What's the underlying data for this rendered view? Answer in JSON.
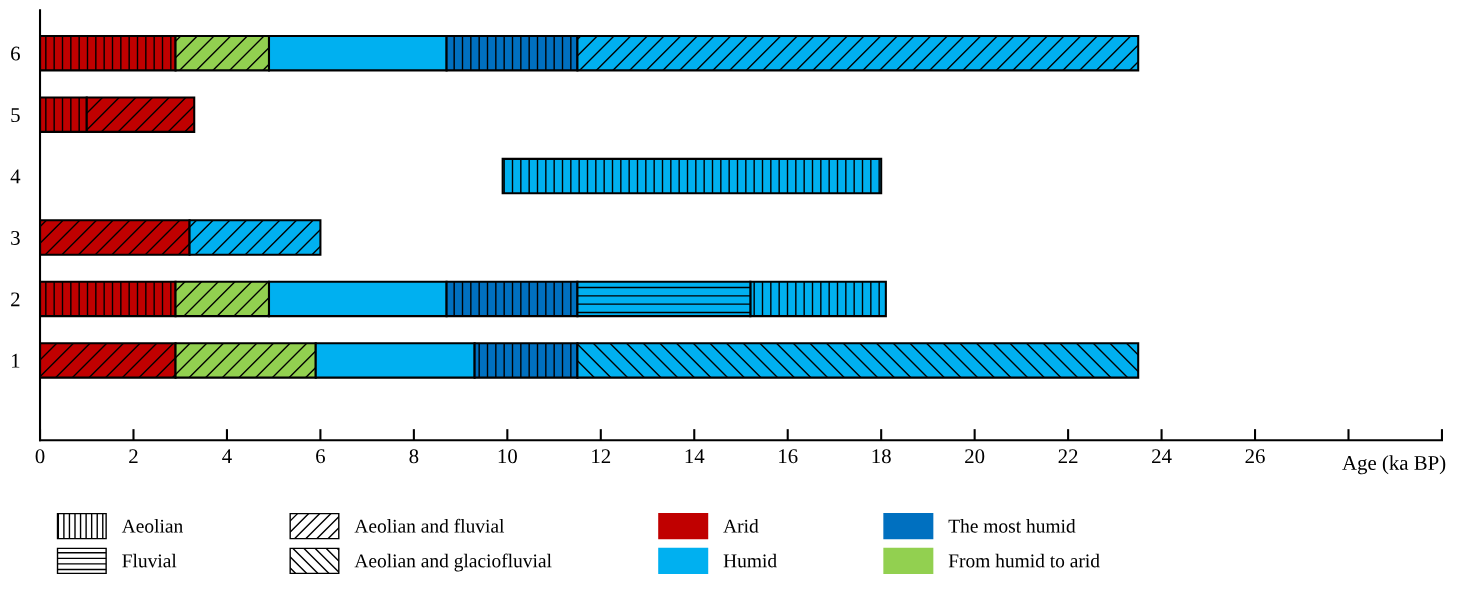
{
  "chart_data": {
    "type": "bar",
    "orientation": "horizontal",
    "xlabel": "Age (ka BP)",
    "categories": [
      "6",
      "5",
      "4",
      "3",
      "2",
      "1"
    ],
    "xlim": [
      0,
      30
    ],
    "xticks": [
      0,
      2,
      4,
      6,
      8,
      10,
      12,
      14,
      16,
      18,
      20,
      22,
      24,
      26,
      {
        "value": 28,
        "label": null
      },
      {
        "value": 30,
        "label": null
      }
    ],
    "grid": false,
    "legend": "bottom",
    "series": [
      {
        "color": "#c00000",
        "base": [
          0,
          0,
          null,
          null,
          0,
          null
        ],
        "values": [
          2.9,
          1.0,
          null,
          null,
          2.9,
          null
        ]
      },
      {
        "color": "#c00000",
        "base": [
          null,
          1.0,
          null,
          0,
          null,
          0
        ],
        "values": [
          null,
          2.3,
          null,
          3.2,
          null,
          2.9
        ]
      },
      {
        "color": "#92d050",
        "base": [
          2.9,
          null,
          null,
          null,
          2.9,
          2.9
        ],
        "values": [
          2.0,
          null,
          null,
          null,
          2.0,
          3.0
        ]
      },
      {
        "color": "#00b0f0",
        "base": [
          4.9,
          null,
          null,
          null,
          4.9,
          5.9
        ],
        "values": [
          3.8,
          null,
          null,
          null,
          3.8,
          3.4
        ]
      },
      {
        "color": "#0070c0",
        "base": [
          8.7,
          null,
          null,
          null,
          8.7,
          9.3
        ],
        "values": [
          2.8,
          null,
          null,
          null,
          2.8,
          2.2
        ]
      },
      {
        "color": "#00b0f0",
        "base": [
          11.5,
          null,
          null,
          3.2,
          null,
          null
        ],
        "values": [
          12.0,
          null,
          null,
          2.8,
          null,
          null
        ]
      },
      {
        "color": "#00b0f0",
        "base": [
          null,
          null,
          9.9,
          null,
          15.2,
          null
        ],
        "values": [
          null,
          null,
          8.1,
          null,
          2.9,
          null
        ]
      },
      {
        "color": "#00b0f0",
        "base": [
          null,
          null,
          null,
          null,
          11.5,
          null
        ],
        "values": [
          null,
          null,
          null,
          null,
          3.7,
          null
        ]
      },
      {
        "color": "#00b0f0",
        "base": [
          null,
          null,
          null,
          null,
          null,
          11.5
        ],
        "values": [
          null,
          null,
          null,
          null,
          null,
          12.0
        ]
      },
      {
        "name": "Aeolian",
        "color": "#000000",
        "values": [
          null,
          null,
          null,
          null,
          null,
          null
        ]
      },
      {
        "name": "Fluvial",
        "color": "#000000",
        "values": [
          null,
          null,
          null,
          null,
          null,
          null
        ]
      },
      {
        "name": "Aeolian and fluvial",
        "color": "#000000",
        "values": [
          null,
          null,
          null,
          null,
          null,
          null
        ]
      },
      {
        "name": "Aeolian and glaciofluvial",
        "color": "#000000",
        "values": [
          null,
          null,
          null,
          null,
          null,
          null
        ]
      },
      {
        "name": "Arid",
        "color": "#c00000",
        "values": [
          null,
          null,
          null,
          null,
          null,
          null
        ]
      },
      {
        "name": "Humid",
        "color": "#00b0f0",
        "values": [
          null,
          null,
          null,
          null,
          null,
          null
        ]
      },
      {
        "name": "The most humid",
        "color": "#0070c0",
        "values": [
          null,
          null,
          null,
          null,
          null,
          null
        ]
      },
      {
        "name": "From humid to arid",
        "color": "#92d050",
        "values": [
          null,
          null,
          null,
          null,
          null,
          null
        ]
      }
    ]
  }
}
